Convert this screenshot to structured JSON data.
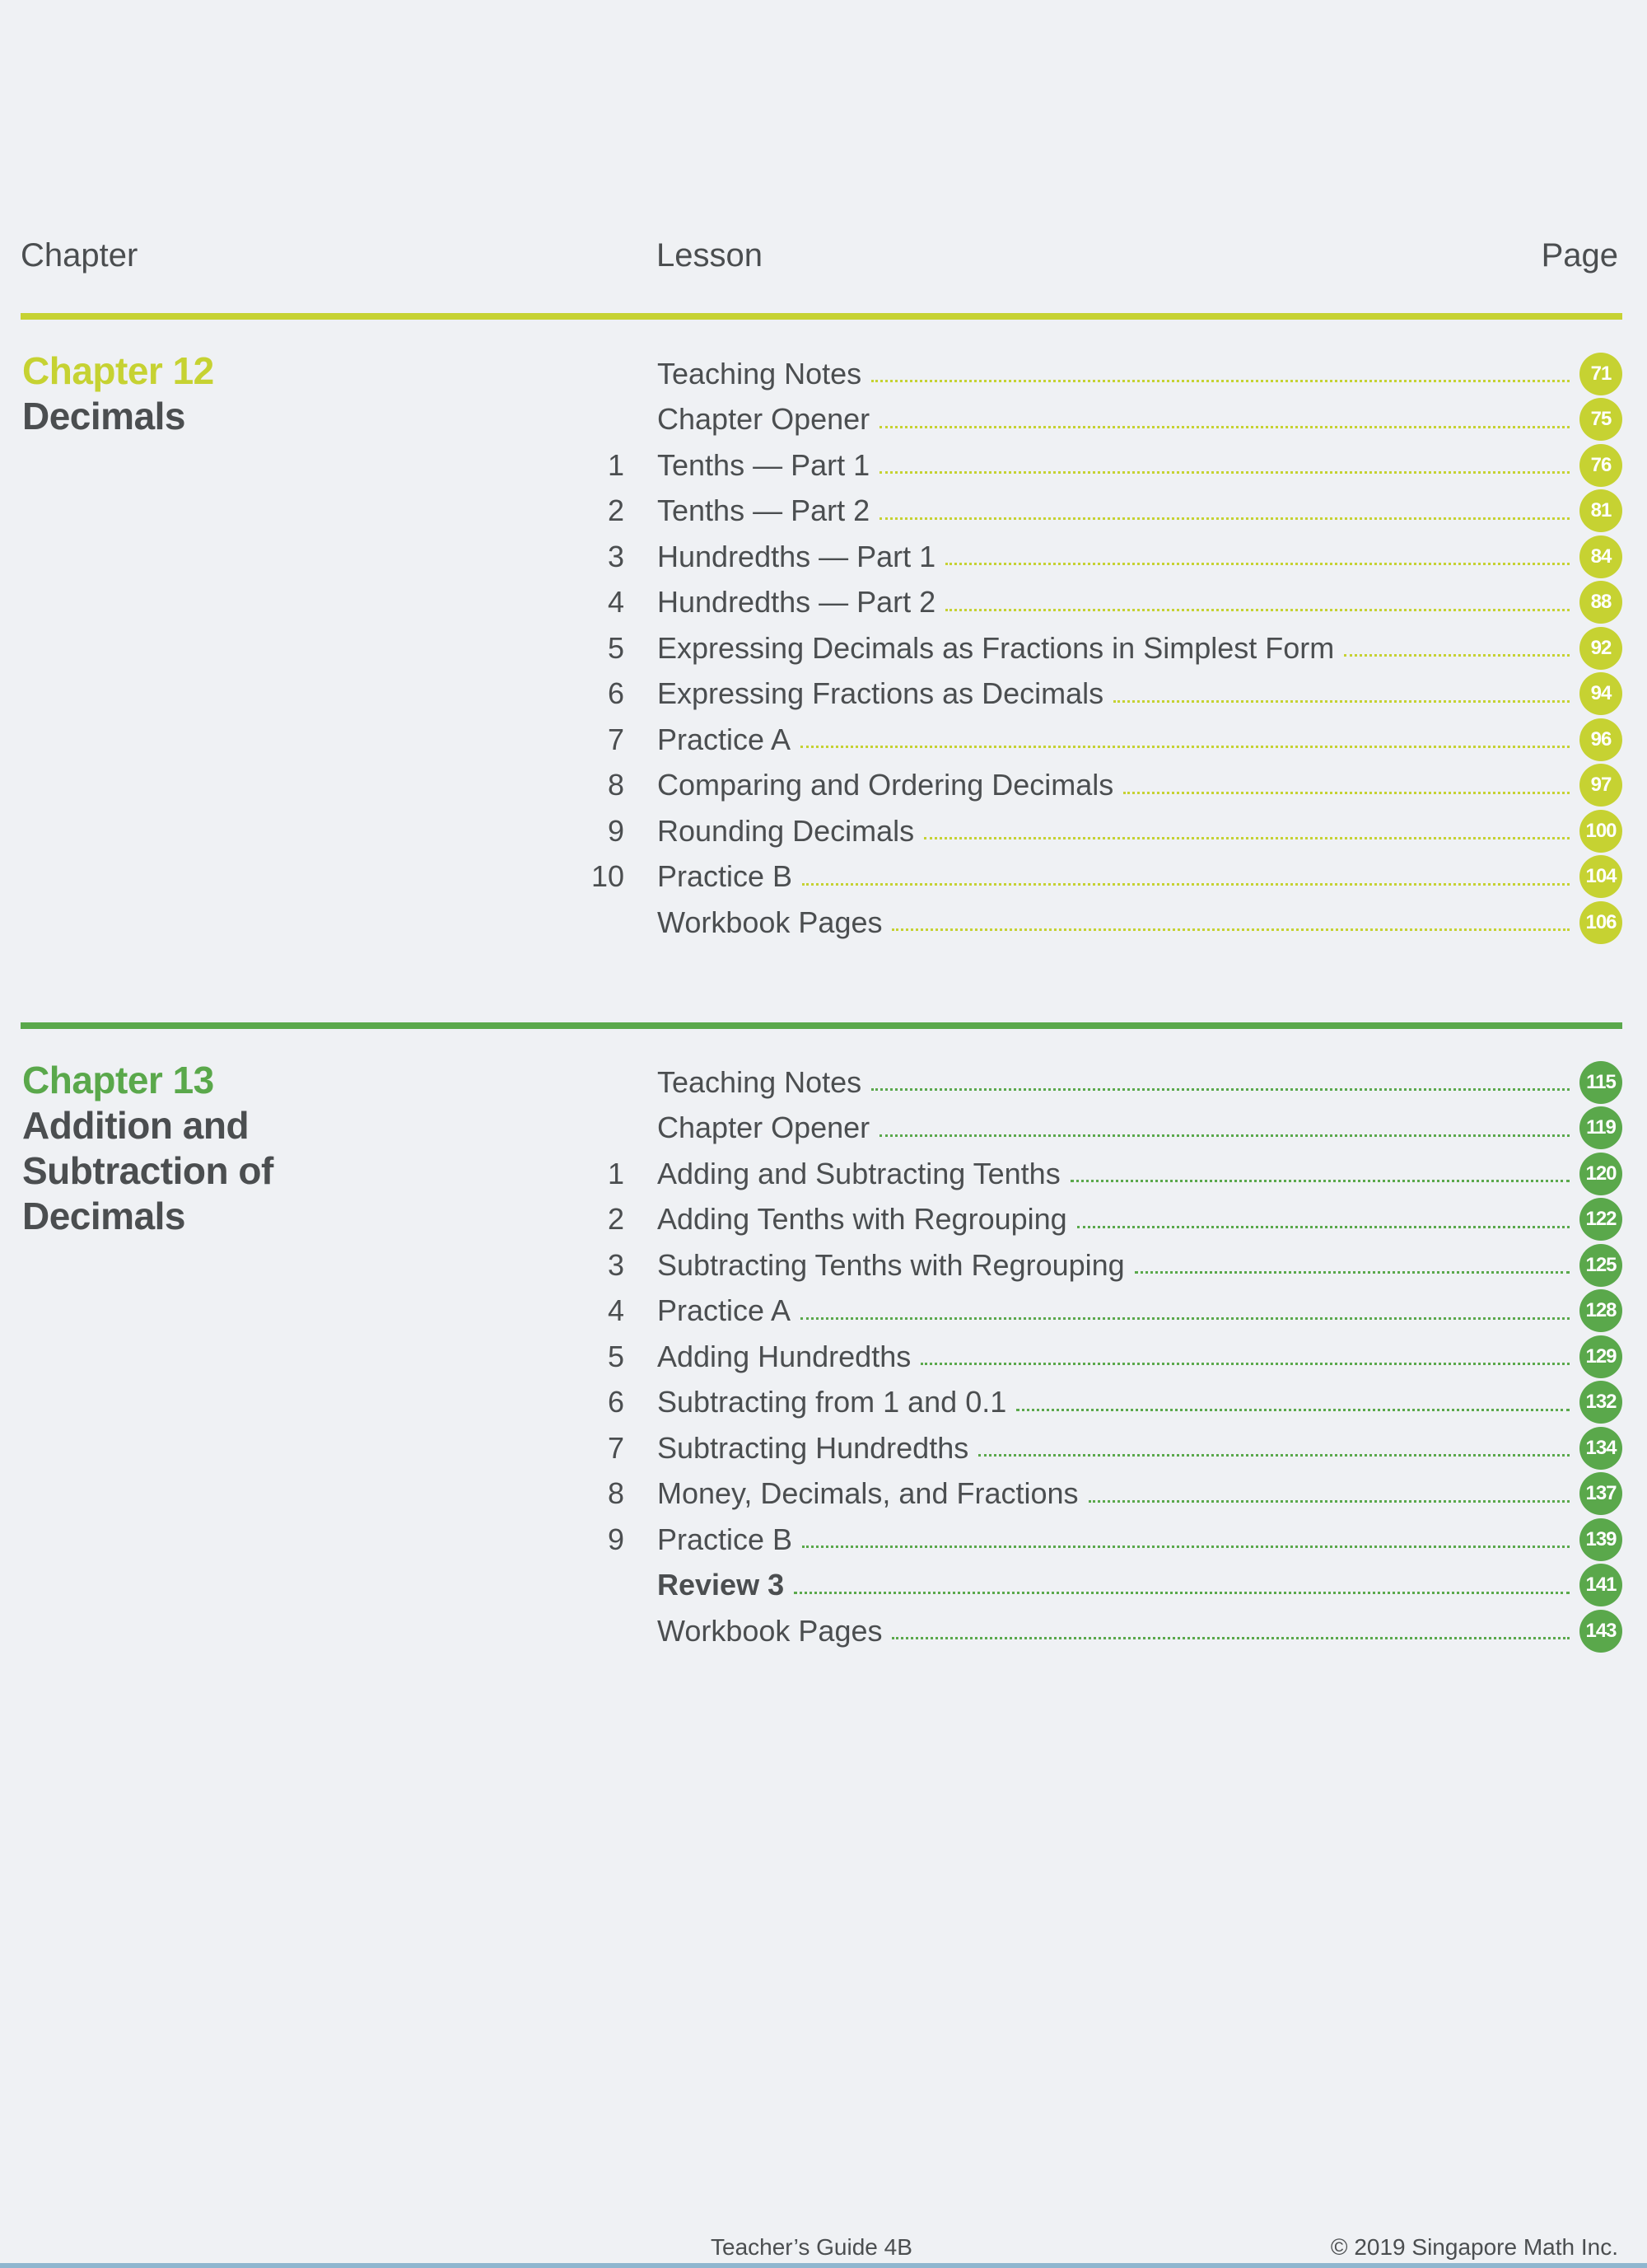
{
  "header": {
    "chapter": "Chapter",
    "lesson": "Lesson",
    "page": "Page"
  },
  "colors": {
    "chapter12": "#c6d232",
    "chapter13": "#5aa84b",
    "text": "#4b4e50"
  },
  "chapters": [
    {
      "number_label": "Chapter 12",
      "title_lines": [
        "Decimals"
      ],
      "lessons": [
        {
          "num": "",
          "title": "Teaching Notes",
          "page": "71"
        },
        {
          "num": "",
          "title": "Chapter Opener",
          "page": "75"
        },
        {
          "num": "1",
          "title": "Tenths — Part 1",
          "page": "76"
        },
        {
          "num": "2",
          "title": "Tenths — Part 2",
          "page": "81"
        },
        {
          "num": "3",
          "title": "Hundredths — Part 1",
          "page": "84"
        },
        {
          "num": "4",
          "title": "Hundredths — Part 2",
          "page": "88"
        },
        {
          "num": "5",
          "title": "Expressing Decimals as Fractions in Simplest Form",
          "page": "92"
        },
        {
          "num": "6",
          "title": "Expressing Fractions as Decimals",
          "page": "94"
        },
        {
          "num": "7",
          "title": "Practice A",
          "page": "96"
        },
        {
          "num": "8",
          "title": "Comparing and Ordering Decimals",
          "page": "97"
        },
        {
          "num": "9",
          "title": "Rounding Decimals",
          "page": "100"
        },
        {
          "num": "10",
          "title": "Practice B",
          "page": "104"
        },
        {
          "num": "",
          "title": "Workbook Pages",
          "page": "106"
        }
      ]
    },
    {
      "number_label": "Chapter 13",
      "title_lines": [
        "Addition and",
        "Subtraction of",
        "Decimals"
      ],
      "lessons": [
        {
          "num": "",
          "title": "Teaching Notes",
          "page": "115"
        },
        {
          "num": "",
          "title": "Chapter Opener",
          "page": "119"
        },
        {
          "num": "1",
          "title": "Adding and Subtracting Tenths",
          "page": "120"
        },
        {
          "num": "2",
          "title": "Adding Tenths with Regrouping",
          "page": "122"
        },
        {
          "num": "3",
          "title": "Subtracting Tenths with Regrouping",
          "page": "125"
        },
        {
          "num": "4",
          "title": "Practice A",
          "page": "128"
        },
        {
          "num": "5",
          "title": "Adding Hundredths",
          "page": "129"
        },
        {
          "num": "6",
          "title": "Subtracting from 1 and 0.1",
          "page": "132"
        },
        {
          "num": "7",
          "title": "Subtracting Hundredths",
          "page": "134"
        },
        {
          "num": "8",
          "title": "Money, Decimals, and Fractions",
          "page": "137"
        },
        {
          "num": "9",
          "title": "Practice B",
          "page": "139"
        },
        {
          "num": "",
          "title": "Review 3",
          "page": "141",
          "bold": true
        },
        {
          "num": "",
          "title": "Workbook Pages",
          "page": "143"
        }
      ]
    }
  ],
  "footer": {
    "book": "Teacher’s Guide 4B",
    "copyright": "© 2019 Singapore Math Inc."
  }
}
